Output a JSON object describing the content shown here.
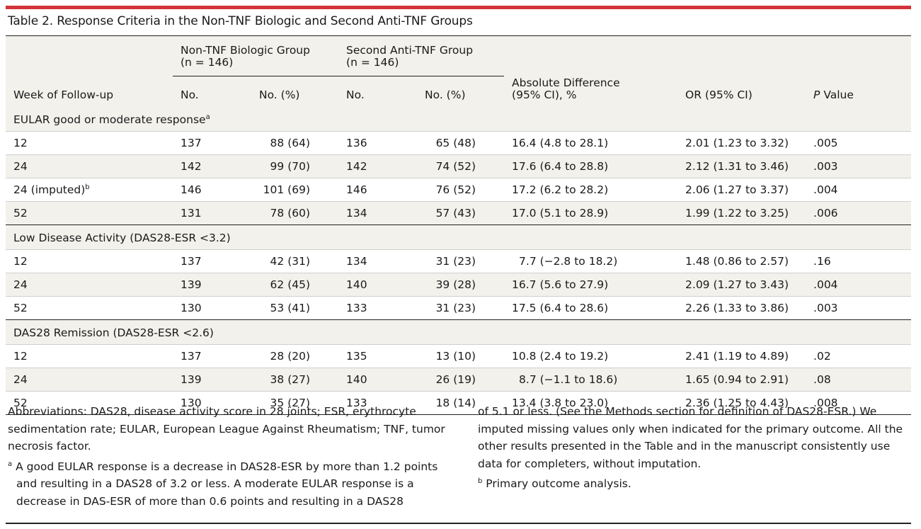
{
  "title": "Table 2. Response Criteria in the Non-TNF Biologic and Second Anti-TNF Groups",
  "header": {
    "week": "Week of Follow-up",
    "group1": "Non-TNF Biologic Group",
    "group1_n": "(n = 146)",
    "group2": "Second Anti-TNF Group",
    "group2_n": "(n = 146)",
    "no": "No.",
    "no_pct": "No. (%)",
    "abs_diff_1": "Absolute Difference",
    "abs_diff_2": "(95% CI), %",
    "or": "OR (95% CI)",
    "p_italic": "P",
    "p_rest": " Value"
  },
  "sections": [
    {
      "label": "EULAR good or moderate response",
      "sup": "a",
      "rows": [
        {
          "week": "12",
          "sup": "",
          "n1": "137",
          "p1": "88 (64)",
          "n2": "136",
          "p2": "65 (48)",
          "ad": "16.4 (4.8 to 28.1)",
          "or": "2.01 (1.23 to 3.32)",
          "p": ".005"
        },
        {
          "week": "24",
          "sup": "",
          "n1": "142",
          "p1": "99 (70)",
          "n2": "142",
          "p2": "74 (52)",
          "ad": "17.6 (6.4 to 28.8)",
          "or": "2.12 (1.31 to 3.46)",
          "p": ".003"
        },
        {
          "week": "24 (imputed)",
          "sup": "b",
          "n1": "146",
          "p1": "101 (69)",
          "n2": "146",
          "p2": "76 (52)",
          "ad": "17.2 (6.2 to 28.2)",
          "or": "2.06 (1.27 to 3.37)",
          "p": ".004"
        },
        {
          "week": "52",
          "sup": "",
          "n1": "131",
          "p1": "78 (60)",
          "n2": "134",
          "p2": "57 (43)",
          "ad": "17.0 (5.1 to 28.9)",
          "or": "1.99 (1.22 to 3.25)",
          "p": ".006"
        }
      ]
    },
    {
      "label": "Low Disease Activity (DAS28-ESR <3.2)",
      "sup": "",
      "rows": [
        {
          "week": "12",
          "sup": "",
          "n1": "137",
          "p1": "42 (31)",
          "n2": "134",
          "p2": "31 (23)",
          "ad": "7.7 (−2.8 to 18.2)",
          "or": "1.48 (0.86 to 2.57)",
          "p": ".16"
        },
        {
          "week": "24",
          "sup": "",
          "n1": "139",
          "p1": "62 (45)",
          "n2": "140",
          "p2": "39 (28)",
          "ad": "16.7 (5.6 to 27.9)",
          "or": "2.09 (1.27 to 3.43)",
          "p": ".004"
        },
        {
          "week": "52",
          "sup": "",
          "n1": "130",
          "p1": "53 (41)",
          "n2": "133",
          "p2": "31 (23)",
          "ad": "17.5 (6.4 to 28.6)",
          "or": "2.26 (1.33 to 3.86)",
          "p": ".003"
        }
      ]
    },
    {
      "label": "DAS28 Remission (DAS28-ESR <2.6)",
      "sup": "",
      "rows": [
        {
          "week": "12",
          "sup": "",
          "n1": "137",
          "p1": "28 (20)",
          "n2": "135",
          "p2": "13 (10)",
          "ad": "10.8 (2.4 to 19.2)",
          "or": "2.41 (1.19 to 4.89)",
          "p": ".02"
        },
        {
          "week": "24",
          "sup": "",
          "n1": "139",
          "p1": "38 (27)",
          "n2": "140",
          "p2": "26 (19)",
          "ad": "8.7 (−1.1 to 18.6)",
          "or": "1.65 (0.94 to 2.91)",
          "p": ".08"
        },
        {
          "week": "52",
          "sup": "",
          "n1": "130",
          "p1": "35 (27)",
          "n2": "133",
          "p2": "18 (14)",
          "ad": "13.4 (3.8 to 23.0)",
          "or": "2.36 (1.25 to 4.43)",
          "p": ".008"
        }
      ]
    }
  ],
  "notes": {
    "abbreviations": "Abbreviations: DAS28, disease activity score in 28 joints; ESR, erythrocyte sedimentation rate; EULAR, European League Against Rheumatism; TNF, tumor necrosis factor.",
    "footnote_a_mark": "a",
    "footnote_a": "A good EULAR response is a decrease in DAS28-ESR by more than 1.2 points and resulting in a DAS28 of 3.2 or less. A moderate EULAR response is a decrease in DAS-ESR of more than 0.6 points and resulting in a DAS28",
    "footnote_a_cont": "of 5.1 or less. (See the Methods section for definition of DAS28-ESR.) We imputed missing values only when indicated for the primary outcome. All the other results presented in the Table and in the manuscript consistently use data for completers, without imputation.",
    "footnote_b_mark": "b",
    "footnote_b": "Primary outcome analysis."
  }
}
